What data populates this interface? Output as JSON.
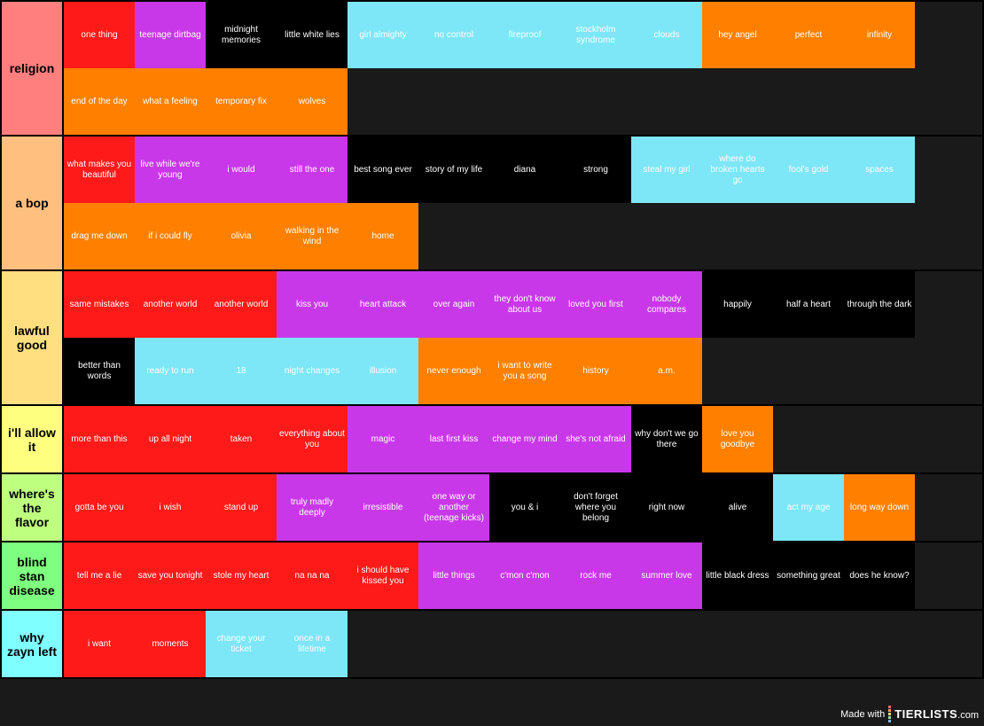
{
  "type": "tier-list",
  "background_color": "#1a1a1a",
  "item_text_color": "#ffffff",
  "label_text_color": "#000000",
  "border_color": "#000000",
  "item_width": 80,
  "item_height": 75,
  "label_width": 70,
  "item_font_size": 10,
  "label_font_size": 14,
  "watermark": {
    "prefix": "Made with",
    "brand": "TIERLISTS",
    "suffix": ".com",
    "bar_colors": [
      "#ff6b6b",
      "#ffa94d",
      "#ffe066",
      "#8ce99a",
      "#74c0fc"
    ]
  },
  "tiers": [
    {
      "label": "religion",
      "label_color": "#ff7f7f",
      "items": [
        {
          "text": "one thing",
          "color": "#ff1a1a"
        },
        {
          "text": "teenage dirtbag",
          "color": "#c838e8"
        },
        {
          "text": "midnight memories",
          "color": "#000000"
        },
        {
          "text": "little white lies",
          "color": "#000000"
        },
        {
          "text": "girl almighty",
          "color": "#7de6f7"
        },
        {
          "text": "no control",
          "color": "#7de6f7"
        },
        {
          "text": "fireproof",
          "color": "#7de6f7"
        },
        {
          "text": "stockholm syndrome",
          "color": "#7de6f7"
        },
        {
          "text": "clouds",
          "color": "#7de6f7"
        },
        {
          "text": "hey angel",
          "color": "#ff8000"
        },
        {
          "text": "perfect",
          "color": "#ff8000"
        },
        {
          "text": "infinity",
          "color": "#ff8000"
        },
        {
          "text": "end of the day",
          "color": "#ff8000"
        },
        {
          "text": "what a feeling",
          "color": "#ff8000"
        },
        {
          "text": "temporary fix",
          "color": "#ff8000"
        },
        {
          "text": "wolves",
          "color": "#ff8000"
        }
      ]
    },
    {
      "label": "a bop",
      "label_color": "#ffbf7f",
      "items": [
        {
          "text": "what makes you beautiful",
          "color": "#ff1a1a"
        },
        {
          "text": "live while we're young",
          "color": "#c838e8"
        },
        {
          "text": "i would",
          "color": "#c838e8"
        },
        {
          "text": "still the one",
          "color": "#c838e8"
        },
        {
          "text": "best song ever",
          "color": "#000000"
        },
        {
          "text": "story of my life",
          "color": "#000000"
        },
        {
          "text": "diana",
          "color": "#000000"
        },
        {
          "text": "strong",
          "color": "#000000"
        },
        {
          "text": "steal my girl",
          "color": "#7de6f7"
        },
        {
          "text": "where do broken hearts go",
          "color": "#7de6f7"
        },
        {
          "text": "fool's gold",
          "color": "#7de6f7"
        },
        {
          "text": "spaces",
          "color": "#7de6f7"
        },
        {
          "text": "drag me down",
          "color": "#ff8000"
        },
        {
          "text": "if i could fly",
          "color": "#ff8000"
        },
        {
          "text": "olivia",
          "color": "#ff8000"
        },
        {
          "text": "walking in the wind",
          "color": "#ff8000"
        },
        {
          "text": "home",
          "color": "#ff8000"
        }
      ]
    },
    {
      "label": "lawful good",
      "label_color": "#ffdf7f",
      "items": [
        {
          "text": "same mistakes",
          "color": "#ff1a1a"
        },
        {
          "text": "another world",
          "color": "#ff1a1a"
        },
        {
          "text": "another world",
          "color": "#ff1a1a"
        },
        {
          "text": "kiss you",
          "color": "#c838e8"
        },
        {
          "text": "heart attack",
          "color": "#c838e8"
        },
        {
          "text": "over again",
          "color": "#c838e8"
        },
        {
          "text": "they don't know about us",
          "color": "#c838e8"
        },
        {
          "text": "loved you first",
          "color": "#c838e8"
        },
        {
          "text": "nobody compares",
          "color": "#c838e8"
        },
        {
          "text": "happily",
          "color": "#000000"
        },
        {
          "text": "half a heart",
          "color": "#000000"
        },
        {
          "text": "through the dark",
          "color": "#000000"
        },
        {
          "text": "better than words",
          "color": "#000000"
        },
        {
          "text": "ready to run",
          "color": "#7de6f7"
        },
        {
          "text": "18",
          "color": "#7de6f7"
        },
        {
          "text": "night changes",
          "color": "#7de6f7"
        },
        {
          "text": "illusion",
          "color": "#7de6f7"
        },
        {
          "text": "never enough",
          "color": "#ff8000"
        },
        {
          "text": "i want to write you a song",
          "color": "#ff8000"
        },
        {
          "text": "history",
          "color": "#ff8000"
        },
        {
          "text": "a.m.",
          "color": "#ff8000"
        }
      ]
    },
    {
      "label": "i'll allow it",
      "label_color": "#ffff7f",
      "items": [
        {
          "text": "more than this",
          "color": "#ff1a1a"
        },
        {
          "text": "up all night",
          "color": "#ff1a1a"
        },
        {
          "text": "taken",
          "color": "#ff1a1a"
        },
        {
          "text": "everything about you",
          "color": "#ff1a1a"
        },
        {
          "text": "magic",
          "color": "#c838e8"
        },
        {
          "text": "last first kiss",
          "color": "#c838e8"
        },
        {
          "text": "change my mind",
          "color": "#c838e8"
        },
        {
          "text": "she's not afraid",
          "color": "#c838e8"
        },
        {
          "text": "why don't we go there",
          "color": "#000000"
        },
        {
          "text": "love you goodbye",
          "color": "#ff8000"
        }
      ]
    },
    {
      "label": "where's the flavor",
      "label_color": "#bfff7f",
      "items": [
        {
          "text": "gotta be you",
          "color": "#ff1a1a"
        },
        {
          "text": "i wish",
          "color": "#ff1a1a"
        },
        {
          "text": "stand up",
          "color": "#ff1a1a"
        },
        {
          "text": "truly madly deeply",
          "color": "#c838e8"
        },
        {
          "text": "irresistible",
          "color": "#c838e8"
        },
        {
          "text": "one way or another (teenage kicks)",
          "color": "#c838e8"
        },
        {
          "text": "you & i",
          "color": "#000000"
        },
        {
          "text": "don't forget where you belong",
          "color": "#000000"
        },
        {
          "text": "right now",
          "color": "#000000"
        },
        {
          "text": "alive",
          "color": "#000000"
        },
        {
          "text": "act my age",
          "color": "#7de6f7"
        },
        {
          "text": "long way down",
          "color": "#ff8000"
        }
      ]
    },
    {
      "label": "blind stan disease",
      "label_color": "#7fff7f",
      "items": [
        {
          "text": "tell me a lie",
          "color": "#ff1a1a"
        },
        {
          "text": "save you tonight",
          "color": "#ff1a1a"
        },
        {
          "text": "stole my heart",
          "color": "#ff1a1a"
        },
        {
          "text": "na na na",
          "color": "#ff1a1a"
        },
        {
          "text": "i should have kissed you",
          "color": "#ff1a1a"
        },
        {
          "text": "little things",
          "color": "#c838e8"
        },
        {
          "text": "c'mon c'mon",
          "color": "#c838e8"
        },
        {
          "text": "rock me",
          "color": "#c838e8"
        },
        {
          "text": "summer love",
          "color": "#c838e8"
        },
        {
          "text": "little black dress",
          "color": "#000000"
        },
        {
          "text": "something great",
          "color": "#000000"
        },
        {
          "text": "does he know?",
          "color": "#000000"
        }
      ]
    },
    {
      "label": "why zayn left",
      "label_color": "#7fffff",
      "items": [
        {
          "text": "i want",
          "color": "#ff1a1a"
        },
        {
          "text": "moments",
          "color": "#ff1a1a"
        },
        {
          "text": "change your ticket",
          "color": "#7de6f7"
        },
        {
          "text": "once in a lifetime",
          "color": "#7de6f7"
        }
      ]
    }
  ]
}
